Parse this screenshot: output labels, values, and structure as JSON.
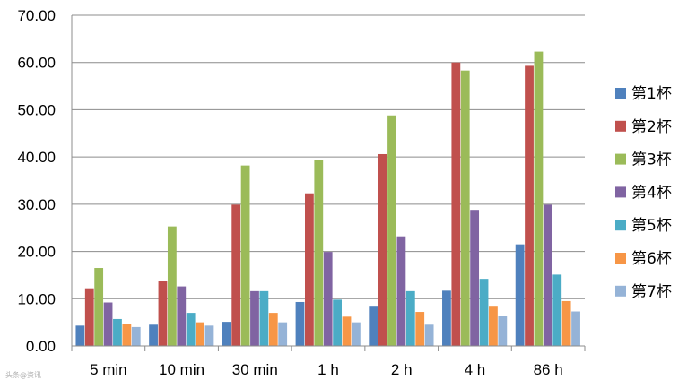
{
  "watermark": "头条@资讯",
  "chart_data": {
    "type": "bar",
    "categories": [
      "5 min",
      "10 min",
      "30 min",
      "1 h",
      "2 h",
      "4 h",
      "86 h"
    ],
    "ylim": [
      0,
      70
    ],
    "yticks": [
      "0.00",
      "10.00",
      "20.00",
      "30.00",
      "40.00",
      "50.00",
      "60.00",
      "70.00"
    ],
    "grid": true,
    "legend_position": "right",
    "series": [
      {
        "name": "第1杯",
        "color": "#4F81BD",
        "values": [
          4.3,
          4.5,
          5.1,
          9.3,
          8.5,
          11.7,
          21.5
        ]
      },
      {
        "name": "第2杯",
        "color": "#C0504D",
        "values": [
          12.2,
          13.7,
          29.9,
          32.3,
          40.6,
          60.0,
          59.3
        ]
      },
      {
        "name": "第3杯",
        "color": "#9BBB59",
        "values": [
          16.5,
          25.3,
          38.2,
          39.4,
          48.8,
          58.3,
          62.3
        ]
      },
      {
        "name": "第4杯",
        "color": "#8064A2",
        "values": [
          9.2,
          12.6,
          11.6,
          19.9,
          23.2,
          28.8,
          29.9
        ]
      },
      {
        "name": "第5杯",
        "color": "#4BACC6",
        "values": [
          5.7,
          7.0,
          11.6,
          9.8,
          11.6,
          14.2,
          15.1
        ]
      },
      {
        "name": "第6杯",
        "color": "#F79646",
        "values": [
          4.6,
          5.0,
          7.0,
          6.2,
          7.2,
          8.5,
          9.5
        ]
      },
      {
        "name": "第7杯",
        "color": "#95B3D7",
        "values": [
          4.0,
          4.3,
          5.0,
          5.0,
          4.5,
          6.3,
          7.3
        ]
      }
    ]
  }
}
